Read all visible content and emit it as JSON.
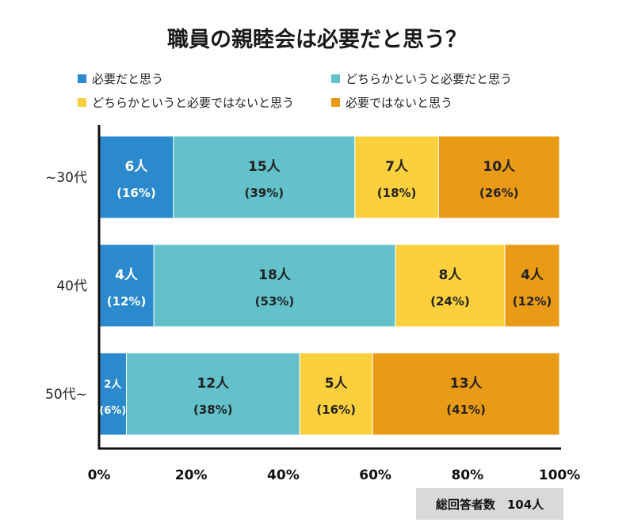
{
  "chart_data": {
    "type": "bar",
    "orientation": "horizontal",
    "stacked": true,
    "percent": true,
    "title": "職員の親睦会は必要だと思う？",
    "categories": [
      "~30代",
      "40代",
      "50代~"
    ],
    "series": [
      {
        "name": "必要だと思う",
        "color": "#2a8acd",
        "values": [
          16,
          12,
          6
        ],
        "labels": [
          "6人",
          "4人",
          "2人"
        ],
        "pct_labels": [
          "(16%)",
          "(12%)",
          "(6%)"
        ]
      },
      {
        "name": "どちらかというと必要だと思う",
        "color": "#62c1cb",
        "values": [
          39,
          53,
          38
        ],
        "labels": [
          "15人",
          "18人",
          "12人"
        ],
        "pct_labels": [
          "(39%)",
          "(53%)",
          "(38%)"
        ]
      },
      {
        "name": "どちらかというと必要ではないと思う",
        "color": "#fcd03d",
        "values": [
          18,
          24,
          16
        ],
        "labels": [
          "7人",
          "8人",
          "5人"
        ],
        "pct_labels": [
          "(18%)",
          "(24%)",
          "(16%)"
        ]
      },
      {
        "name": "必要ではないと思う",
        "color": "#ea9b15",
        "values": [
          26,
          12,
          41
        ],
        "labels": [
          "10人",
          "4人",
          "13人"
        ],
        "pct_labels": [
          "(26%)",
          "(12%)",
          "(41%)"
        ]
      }
    ],
    "x_ticks": [
      "0%",
      "20%",
      "40%",
      "60%",
      "80%",
      "100%"
    ],
    "xlim": [
      0,
      100
    ],
    "legend_position": "top",
    "grid": false
  },
  "total": "総回答者数　104人"
}
